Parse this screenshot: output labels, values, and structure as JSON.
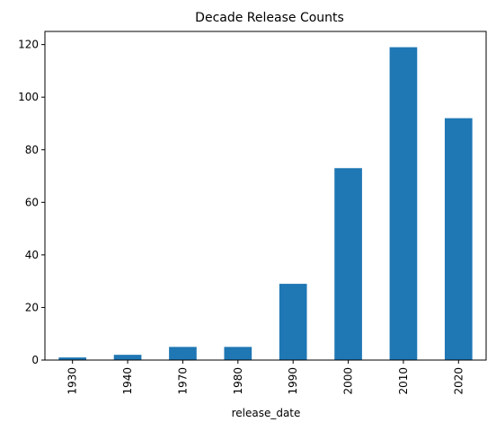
{
  "chart_data": {
    "type": "bar",
    "title": "Decade Release Counts",
    "xlabel": "release_date",
    "ylabel": "",
    "categories": [
      "1930",
      "1940",
      "1970",
      "1980",
      "1990",
      "2000",
      "2010",
      "2020"
    ],
    "values": [
      1,
      2,
      5,
      5,
      29,
      73,
      119,
      92
    ],
    "ylim": [
      0,
      125
    ],
    "yticks": [
      0,
      20,
      40,
      60,
      80,
      100,
      120
    ],
    "grid": false,
    "legend": "none",
    "bar_color": "#1f77b4"
  }
}
